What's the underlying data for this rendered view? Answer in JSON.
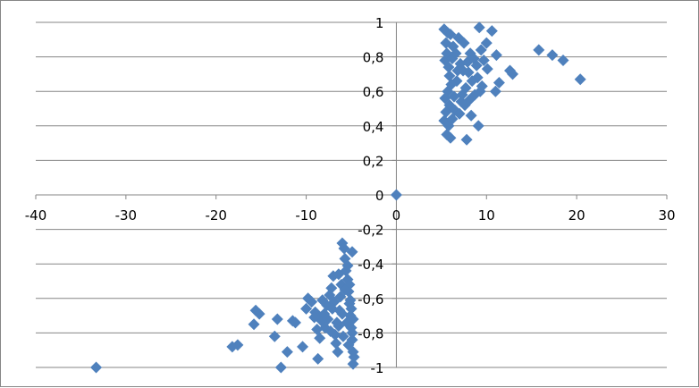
{
  "chart_data": {
    "type": "scatter",
    "title": "",
    "xlabel": "",
    "ylabel": "",
    "xlim": [
      -40,
      30
    ],
    "ylim": [
      -1,
      1
    ],
    "x_ticks": [
      -40,
      -30,
      -20,
      -10,
      0,
      10,
      20,
      30
    ],
    "y_ticks": [
      -1,
      -0.8,
      -0.6,
      -0.4,
      -0.2,
      0,
      0.2,
      0.4,
      0.6,
      0.8,
      1
    ],
    "x_tick_labels": [
      "-40",
      "-30",
      "-20",
      "-10",
      "0",
      "10",
      "20",
      "30"
    ],
    "y_tick_labels": [
      "-1",
      "-0,8",
      "-0,6",
      "-0,4",
      "-0,2",
      "0",
      "0,2",
      "0,4",
      "0,6",
      "0,8",
      "1"
    ],
    "grid": "horizontal major gridlines",
    "legend": "none",
    "marker": "diamond",
    "colors": {
      "marker": "#4F81BD",
      "grid": "#868686",
      "axis": "#868686"
    },
    "series": [
      {
        "points": [
          [
            0.0,
            0.0
          ],
          [
            5.3,
            0.96
          ],
          [
            5.7,
            0.94
          ],
          [
            6.0,
            0.93
          ],
          [
            5.5,
            0.88
          ],
          [
            6.3,
            0.86
          ],
          [
            6.9,
            0.91
          ],
          [
            5.6,
            0.82
          ],
          [
            9.2,
            0.97
          ],
          [
            10.6,
            0.95
          ],
          [
            10.0,
            0.88
          ],
          [
            9.4,
            0.84
          ],
          [
            11.1,
            0.81
          ],
          [
            15.8,
            0.84
          ],
          [
            17.3,
            0.81
          ],
          [
            18.5,
            0.78
          ],
          [
            20.4,
            0.67
          ],
          [
            12.6,
            0.72
          ],
          [
            12.9,
            0.7
          ],
          [
            5.4,
            0.78
          ],
          [
            5.8,
            0.74
          ],
          [
            6.2,
            0.79
          ],
          [
            7.1,
            0.76
          ],
          [
            7.4,
            0.72
          ],
          [
            7.9,
            0.77
          ],
          [
            8.2,
            0.82
          ],
          [
            8.6,
            0.79
          ],
          [
            8.9,
            0.75
          ],
          [
            9.7,
            0.78
          ],
          [
            10.1,
            0.73
          ],
          [
            11.4,
            0.65
          ],
          [
            11.0,
            0.6
          ],
          [
            9.5,
            0.63
          ],
          [
            9.0,
            0.68
          ],
          [
            8.4,
            0.66
          ],
          [
            7.7,
            0.62
          ],
          [
            7.3,
            0.58
          ],
          [
            6.7,
            0.66
          ],
          [
            6.1,
            0.64
          ],
          [
            5.7,
            0.6
          ],
          [
            5.4,
            0.56
          ],
          [
            5.9,
            0.52
          ],
          [
            6.5,
            0.49
          ],
          [
            7.0,
            0.47
          ],
          [
            7.6,
            0.52
          ],
          [
            8.1,
            0.55
          ],
          [
            8.7,
            0.58
          ],
          [
            9.3,
            0.6
          ],
          [
            5.5,
            0.48
          ],
          [
            5.3,
            0.43
          ],
          [
            5.8,
            0.4
          ],
          [
            6.2,
            0.44
          ],
          [
            5.6,
            0.35
          ],
          [
            6.0,
            0.33
          ],
          [
            7.8,
            0.32
          ],
          [
            9.1,
            0.4
          ],
          [
            6.4,
            0.57
          ],
          [
            7.2,
            0.54
          ],
          [
            8.3,
            0.46
          ],
          [
            6.8,
            0.72
          ],
          [
            5.9,
            0.69
          ],
          [
            6.6,
            0.82
          ],
          [
            7.5,
            0.88
          ],
          [
            8.0,
            0.71
          ],
          [
            -33.3,
            -1.0
          ],
          [
            -18.2,
            -0.88
          ],
          [
            -17.6,
            -0.87
          ],
          [
            -15.6,
            -0.67
          ],
          [
            -15.2,
            -0.69
          ],
          [
            -15.8,
            -0.75
          ],
          [
            -13.5,
            -0.82
          ],
          [
            -13.2,
            -0.72
          ],
          [
            -12.8,
            -1.0
          ],
          [
            -12.1,
            -0.91
          ],
          [
            -11.5,
            -0.73
          ],
          [
            -11.2,
            -0.74
          ],
          [
            -10.4,
            -0.88
          ],
          [
            -10.0,
            -0.66
          ],
          [
            -9.8,
            -0.6
          ],
          [
            -9.4,
            -0.62
          ],
          [
            -9.0,
            -0.68
          ],
          [
            -8.8,
            -0.78
          ],
          [
            -8.6,
            -0.71
          ],
          [
            -8.5,
            -0.83
          ],
          [
            -8.7,
            -0.95
          ],
          [
            -8.3,
            -0.73
          ],
          [
            -8.0,
            -0.69
          ],
          [
            -7.9,
            -0.77
          ],
          [
            -7.7,
            -0.64
          ],
          [
            -7.6,
            -0.72
          ],
          [
            -7.4,
            -0.58
          ],
          [
            -7.2,
            -0.54
          ],
          [
            -7.0,
            -0.47
          ],
          [
            -6.9,
            -0.62
          ],
          [
            -6.8,
            -0.81
          ],
          [
            -6.7,
            -0.86
          ],
          [
            -6.5,
            -0.91
          ],
          [
            -6.4,
            -0.76
          ],
          [
            -6.3,
            -0.67
          ],
          [
            -6.2,
            -0.59
          ],
          [
            -6.1,
            -0.52
          ],
          [
            -6.0,
            -0.28
          ],
          [
            -5.8,
            -0.31
          ],
          [
            -5.7,
            -0.37
          ],
          [
            -5.6,
            -0.44
          ],
          [
            -5.4,
            -0.49
          ],
          [
            -5.3,
            -0.56
          ],
          [
            -5.2,
            -0.63
          ],
          [
            -5.1,
            -0.7
          ],
          [
            -5.0,
            -0.77
          ],
          [
            -4.9,
            -0.84
          ],
          [
            -4.8,
            -0.91
          ],
          [
            -4.8,
            -0.98
          ],
          [
            -4.7,
            -0.94
          ],
          [
            -4.9,
            -0.33
          ],
          [
            -5.1,
            -0.61
          ],
          [
            -5.5,
            -0.74
          ],
          [
            -5.9,
            -0.82
          ],
          [
            -6.6,
            -0.74
          ],
          [
            -7.1,
            -0.66
          ],
          [
            -7.3,
            -0.79
          ],
          [
            -8.2,
            -0.61
          ],
          [
            -9.1,
            -0.71
          ],
          [
            -5.2,
            -0.52
          ],
          [
            -5.0,
            -0.66
          ],
          [
            -4.8,
            -0.72
          ],
          [
            -4.9,
            -0.8
          ],
          [
            -5.3,
            -0.87
          ],
          [
            -6.0,
            -0.69
          ],
          [
            -5.7,
            -0.55
          ],
          [
            -6.4,
            -0.46
          ],
          [
            -5.4,
            -0.41
          ]
        ]
      }
    ]
  }
}
